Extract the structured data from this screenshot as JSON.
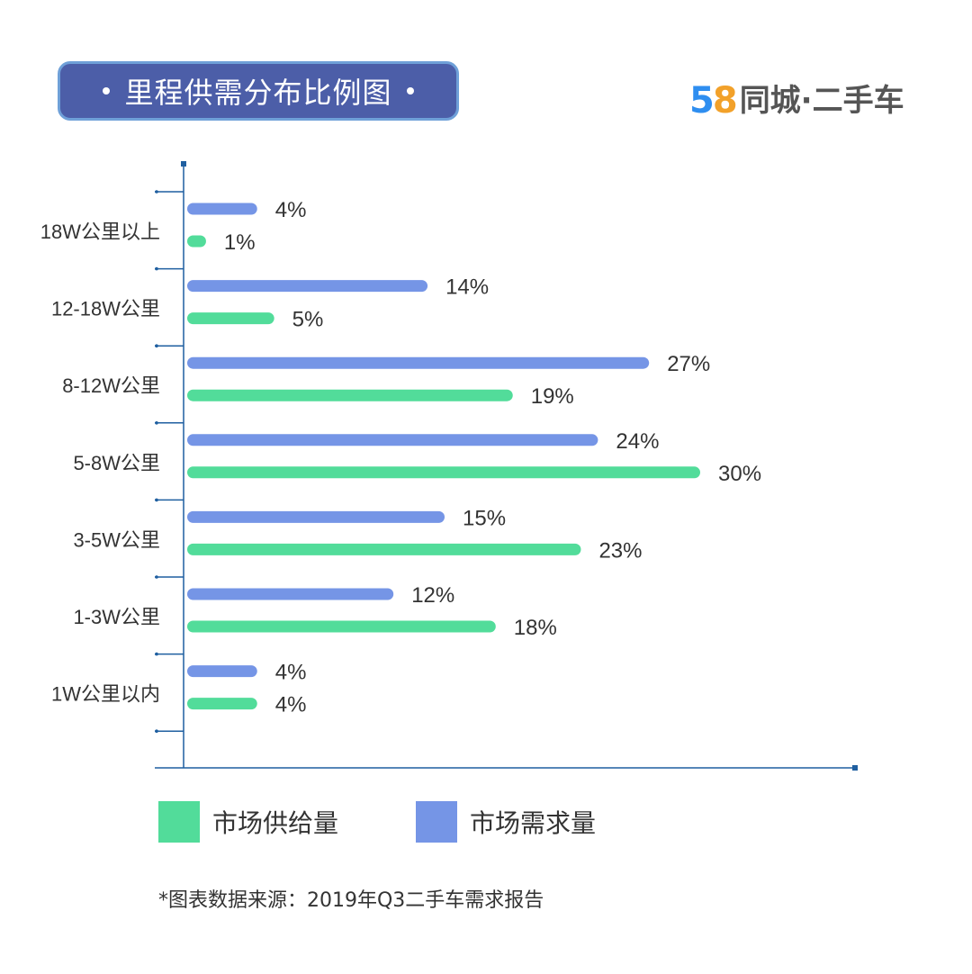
{
  "header": {
    "title": "里程供需分布比例图",
    "logo_number": "58",
    "logo_text": "同城·二手车"
  },
  "colors": {
    "title_bg": "#4c5ea8",
    "title_border": "#6fa0d8",
    "supply": "#52dc9a",
    "demand": "#7595e6",
    "axis": "#1f5fa0",
    "logo_5": "#2e8ef0",
    "logo_8": "#f2a12a"
  },
  "chart_data": {
    "type": "bar",
    "orientation": "horizontal",
    "categories": [
      "18W公里以上",
      "12-18W公里",
      "8-12W公里",
      "5-8W公里",
      "3-5W公里",
      "1-3W公里",
      "1W公里以内"
    ],
    "series": [
      {
        "name": "市场需求量",
        "values": [
          4,
          14,
          27,
          24,
          15,
          12,
          4
        ],
        "labels": [
          "4%",
          "14%",
          "27%",
          "24%",
          "15%",
          "12%",
          "4%"
        ]
      },
      {
        "name": "市场供给量",
        "values": [
          1,
          5,
          19,
          30,
          23,
          18,
          4
        ],
        "labels": [
          "1%",
          "5%",
          "19%",
          "30%",
          "23%",
          "18%",
          "4%"
        ]
      }
    ],
    "unit": "%",
    "xlim": [
      0,
      30
    ],
    "grid": false,
    "legend_position": "bottom"
  },
  "legend": {
    "supply_label": "市场供给量",
    "demand_label": "市场需求量"
  },
  "footer": {
    "source": "*图表数据来源：2019年Q3二手车需求报告"
  }
}
